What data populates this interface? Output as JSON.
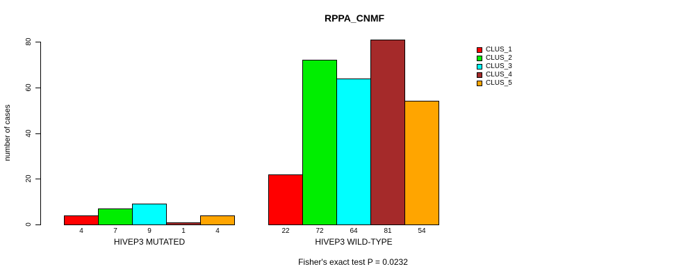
{
  "title": "RPPA_CNMF",
  "ylabel": "number of cases",
  "footer": "Fisher's exact test P = 0.0232",
  "chart_data": {
    "type": "bar",
    "title": "RPPA_CNMF",
    "ylabel": "number of cases",
    "xlabel": "",
    "annotation": "Fisher's exact test P = 0.0232",
    "groups": [
      {
        "label": "HIVEP3 MUTATED",
        "values": [
          4,
          7,
          9,
          1,
          4
        ]
      },
      {
        "label": "HIVEP3 WILD-TYPE",
        "values": [
          22,
          72,
          64,
          81,
          54
        ]
      }
    ],
    "series": [
      {
        "name": "CLUS_1",
        "color": "#FF0000",
        "values": [
          4,
          22
        ]
      },
      {
        "name": "CLUS_2",
        "color": "#00EE00",
        "values": [
          7,
          72
        ]
      },
      {
        "name": "CLUS_3",
        "color": "#00FFFF",
        "values": [
          9,
          64
        ]
      },
      {
        "name": "CLUS_4",
        "color": "#A52A2A",
        "values": [
          1,
          81
        ]
      },
      {
        "name": "CLUS_5",
        "color": "#FFA500",
        "values": [
          4,
          54
        ]
      }
    ],
    "yticks": [
      0,
      20,
      40,
      60,
      80
    ],
    "ylim": [
      0,
      80
    ],
    "grid": false,
    "legend_position": "right"
  }
}
